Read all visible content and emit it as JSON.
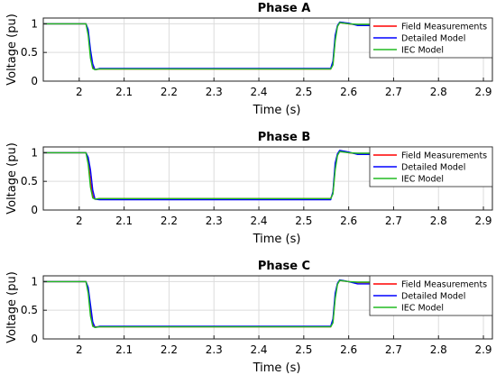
{
  "chart_data": [
    {
      "type": "line",
      "title": "Phase A",
      "xlabel": "Time (s)",
      "ylabel": "Voltage (pu)",
      "xlim": [
        1.92,
        2.92
      ],
      "ylim": [
        0,
        1.1
      ],
      "xticks": [
        2,
        2.1,
        2.2,
        2.3,
        2.4,
        2.5,
        2.6,
        2.7,
        2.8,
        2.9
      ],
      "xtick_labels": [
        "2",
        "2.1",
        "2.2",
        "2.3",
        "2.4",
        "2.5",
        "2.6",
        "2.7",
        "2.8",
        "2.9"
      ],
      "yticks": [
        0,
        0.5,
        1
      ],
      "ytick_labels": [
        "0",
        "0.5",
        "1"
      ],
      "grid": true,
      "legend_position": "top-right",
      "series": [
        {
          "name": "Field Measurements",
          "color": "#ff0000",
          "x": [
            1.92,
            2.015,
            2.02,
            2.025,
            2.03,
            2.035,
            2.045,
            2.56,
            2.565,
            2.57,
            2.575,
            2.58,
            2.6,
            2.62,
            2.65
          ],
          "y": [
            1.0,
            1.0,
            0.85,
            0.45,
            0.25,
            0.2,
            0.21,
            0.21,
            0.3,
            0.75,
            0.96,
            1.02,
            1.0,
            0.98,
            0.98
          ]
        },
        {
          "name": "Detailed Model",
          "color": "#0000ff",
          "x": [
            1.92,
            2.015,
            2.02,
            2.025,
            2.03,
            2.035,
            2.045,
            2.56,
            2.565,
            2.57,
            2.575,
            2.58,
            2.6,
            2.62,
            2.65
          ],
          "y": [
            1.0,
            1.0,
            0.9,
            0.55,
            0.3,
            0.2,
            0.22,
            0.22,
            0.35,
            0.8,
            0.97,
            1.03,
            1.01,
            0.97,
            0.97
          ]
        },
        {
          "name": "IEC Model",
          "color": "#22bb22",
          "x": [
            1.92,
            2.015,
            2.02,
            2.025,
            2.03,
            2.035,
            2.045,
            2.56,
            2.565,
            2.57,
            2.575,
            2.58,
            2.6,
            2.62,
            2.65
          ],
          "y": [
            1.0,
            1.0,
            0.8,
            0.4,
            0.22,
            0.2,
            0.21,
            0.21,
            0.28,
            0.7,
            0.95,
            1.02,
            1.0,
            0.99,
            0.99
          ]
        }
      ]
    },
    {
      "type": "line",
      "title": "Phase B",
      "xlabel": "Time (s)",
      "ylabel": "Voltage (pu)",
      "xlim": [
        1.92,
        2.92
      ],
      "ylim": [
        0,
        1.1
      ],
      "xticks": [
        2,
        2.1,
        2.2,
        2.3,
        2.4,
        2.5,
        2.6,
        2.7,
        2.8,
        2.9
      ],
      "xtick_labels": [
        "2",
        "2.1",
        "2.2",
        "2.3",
        "2.4",
        "2.5",
        "2.6",
        "2.7",
        "2.8",
        "2.9"
      ],
      "yticks": [
        0,
        0.5,
        1
      ],
      "ytick_labels": [
        "0",
        "0.5",
        "1"
      ],
      "grid": true,
      "legend_position": "top-right",
      "series": [
        {
          "name": "Field Measurements",
          "color": "#ff0000",
          "x": [
            1.92,
            2.015,
            2.02,
            2.025,
            2.03,
            2.035,
            2.045,
            2.56,
            2.565,
            2.57,
            2.575,
            2.58,
            2.6,
            2.62,
            2.65
          ],
          "y": [
            1.0,
            1.0,
            0.88,
            0.5,
            0.25,
            0.19,
            0.2,
            0.2,
            0.3,
            0.75,
            0.96,
            1.03,
            1.0,
            0.98,
            0.98
          ]
        },
        {
          "name": "Detailed Model",
          "color": "#0000ff",
          "x": [
            1.92,
            2.015,
            2.02,
            2.025,
            2.03,
            2.035,
            2.045,
            2.56,
            2.565,
            2.57,
            2.575,
            2.58,
            2.6,
            2.62,
            2.65
          ],
          "y": [
            1.0,
            1.0,
            0.92,
            0.7,
            0.35,
            0.19,
            0.18,
            0.18,
            0.32,
            0.82,
            0.98,
            1.04,
            1.01,
            0.97,
            0.97
          ]
        },
        {
          "name": "IEC Model",
          "color": "#22bb22",
          "x": [
            1.92,
            2.015,
            2.02,
            2.025,
            2.03,
            2.035,
            2.045,
            2.56,
            2.565,
            2.57,
            2.575,
            2.58,
            2.6,
            2.62,
            2.65
          ],
          "y": [
            1.0,
            1.0,
            0.8,
            0.4,
            0.21,
            0.19,
            0.2,
            0.2,
            0.28,
            0.7,
            0.95,
            1.02,
            1.0,
            0.99,
            0.99
          ]
        }
      ]
    },
    {
      "type": "line",
      "title": "Phase C",
      "xlabel": "Time (s)",
      "ylabel": "Voltage (pu)",
      "xlim": [
        1.92,
        2.92
      ],
      "ylim": [
        0,
        1.1
      ],
      "xticks": [
        2,
        2.1,
        2.2,
        2.3,
        2.4,
        2.5,
        2.6,
        2.7,
        2.8,
        2.9
      ],
      "xtick_labels": [
        "2",
        "2.1",
        "2.2",
        "2.3",
        "2.4",
        "2.5",
        "2.6",
        "2.7",
        "2.8",
        "2.9"
      ],
      "yticks": [
        0,
        0.5,
        1
      ],
      "ytick_labels": [
        "0",
        "0.5",
        "1"
      ],
      "grid": true,
      "legend_position": "top-right",
      "series": [
        {
          "name": "Field Measurements",
          "color": "#ff0000",
          "x": [
            1.92,
            2.015,
            2.02,
            2.025,
            2.03,
            2.035,
            2.045,
            2.56,
            2.565,
            2.57,
            2.575,
            2.58,
            2.6,
            2.62,
            2.65
          ],
          "y": [
            1.0,
            1.0,
            0.87,
            0.5,
            0.25,
            0.21,
            0.21,
            0.21,
            0.3,
            0.75,
            0.96,
            1.02,
            1.0,
            0.98,
            0.98
          ]
        },
        {
          "name": "Detailed Model",
          "color": "#0000ff",
          "x": [
            1.92,
            2.015,
            2.02,
            2.025,
            2.03,
            2.035,
            2.045,
            2.56,
            2.565,
            2.57,
            2.575,
            2.58,
            2.6,
            2.62,
            2.65
          ],
          "y": [
            1.0,
            1.0,
            0.9,
            0.6,
            0.3,
            0.2,
            0.22,
            0.22,
            0.35,
            0.8,
            0.97,
            1.03,
            1.0,
            0.96,
            0.96
          ]
        },
        {
          "name": "IEC Model",
          "color": "#22bb22",
          "x": [
            1.92,
            2.015,
            2.02,
            2.025,
            2.03,
            2.035,
            2.045,
            2.56,
            2.565,
            2.57,
            2.575,
            2.58,
            2.6,
            2.62,
            2.65
          ],
          "y": [
            1.0,
            1.0,
            0.8,
            0.4,
            0.22,
            0.2,
            0.21,
            0.21,
            0.28,
            0.7,
            0.95,
            1.02,
            1.0,
            0.99,
            0.99
          ]
        }
      ]
    }
  ]
}
